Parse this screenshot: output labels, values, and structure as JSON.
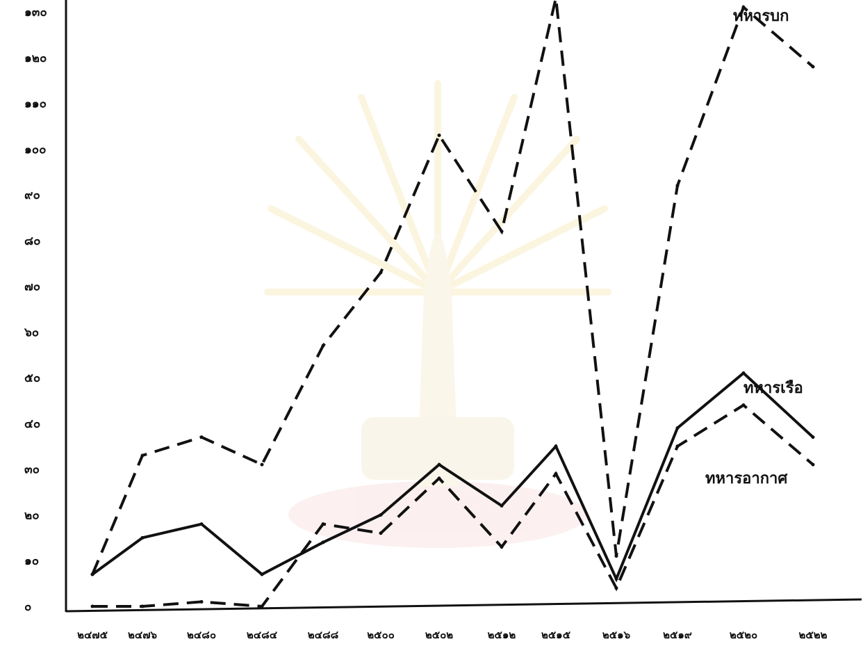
{
  "chart_data": {
    "type": "line",
    "title": "",
    "xlabel": "",
    "ylabel": "",
    "ylim": [
      0,
      130
    ],
    "yticks": [
      {
        "value": 0,
        "label": "๐"
      },
      {
        "value": 10,
        "label": "๑๐"
      },
      {
        "value": 20,
        "label": "๒๐"
      },
      {
        "value": 30,
        "label": "๓๐"
      },
      {
        "value": 40,
        "label": "๔๐"
      },
      {
        "value": 50,
        "label": "๕๐"
      },
      {
        "value": 60,
        "label": "๖๐"
      },
      {
        "value": 70,
        "label": "๗๐"
      },
      {
        "value": 80,
        "label": "๘๐"
      },
      {
        "value": 90,
        "label": "๙๐"
      },
      {
        "value": 100,
        "label": "๑๐๐"
      },
      {
        "value": 110,
        "label": "๑๑๐"
      },
      {
        "value": 120,
        "label": "๑๒๐"
      },
      {
        "value": 130,
        "label": "๑๓๐"
      }
    ],
    "categories": [
      "๒๔๗๕",
      "๒๔๗๖",
      "๒๔๘๐",
      "๒๔๘๔",
      "๒๔๘๘",
      "๒๕๐๐",
      "๒๕๐๒",
      "๒๕๑๒",
      "๒๕๑๕",
      "๒๕๑๖",
      "๒๕๑๙",
      "๒๕๒๐",
      "๒๕๒๒"
    ],
    "grid": false,
    "legend": "inline",
    "series": [
      {
        "name": "ทหารบก",
        "style": "dashed",
        "color": "#111111",
        "values": [
          7,
          33,
          37,
          31,
          57,
          73,
          103,
          82,
          133,
          11,
          92,
          131,
          118
        ]
      },
      {
        "name": "ทหารเรือ",
        "style": "solid",
        "color": "#111111",
        "values": [
          7,
          15,
          18,
          7,
          14,
          20,
          31,
          22,
          35,
          6,
          39,
          51,
          37
        ]
      },
      {
        "name": "ทหารอากาศ",
        "style": "dashed",
        "color": "#111111",
        "values": [
          0,
          0,
          1,
          0,
          18,
          16,
          28,
          13,
          29,
          4,
          35,
          44,
          31
        ]
      }
    ]
  }
}
